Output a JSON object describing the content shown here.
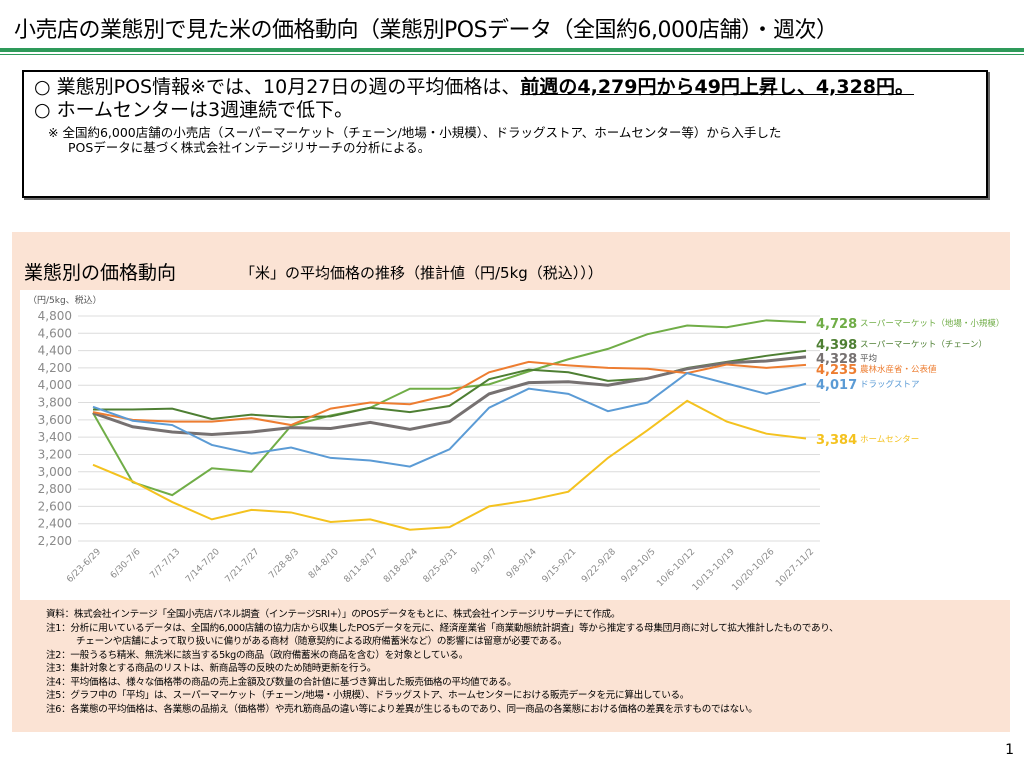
{
  "header": {
    "title": "小売店の業態別で見た米の価格動向（業態別POSデータ（全国約6,000店舗）・週次）"
  },
  "summary": {
    "bullet1_prefix": "○  業態別POS情報※では、10月27日の週の平均価格は、",
    "bullet1_emph": "前週の4,279円から49円上昇し、4,328円。",
    "bullet2": "○  ホームセンターは3週連続で低下。",
    "note1": "※  全国約6,000店舗の小売店（スーパーマーケット（チェーン/地場・小規模）、ドラッグストア、ホームセンター等）から入手した",
    "note2": "POSデータに基づく株式会社インテージリサーチの分析による。"
  },
  "panel": {
    "title": "業態別の価格動向",
    "subtitle": "「米」の平均価格の推移（推計値（円/5kg（税込）））"
  },
  "chart_data": {
    "type": "line",
    "title": "「米」の平均価格の推移（推計値（円/5kg（税込）））",
    "ylabel": "（円/5kg、税込）",
    "ylim": [
      2200,
      4800
    ],
    "yticks": [
      "2,200",
      "2,400",
      "2,600",
      "2,800",
      "3,000",
      "3,200",
      "3,400",
      "3,600",
      "3,800",
      "4,000",
      "4,200",
      "4,400",
      "4,600",
      "4,800"
    ],
    "grid": true,
    "legend": "right, end-of-line labels",
    "categories": [
      "6/23-6/29",
      "6/30-7/6",
      "7/7-7/13",
      "7/14-7/20",
      "7/21-7/27",
      "7/28-8/3",
      "8/4-8/10",
      "8/11-8/17",
      "8/18-8/24",
      "8/25-8/31",
      "9/1-9/7",
      "9/8-9/14",
      "9/15-9/21",
      "9/22-9/28",
      "9/29-10/5",
      "10/6-10/12",
      "10/13-10/19",
      "10/20-10/26",
      "10/27-11/2"
    ],
    "series": [
      {
        "name": "スーパーマーケット（地場・小規模）",
        "end_label": "4,728",
        "color": "#70ad47",
        "values": [
          3680,
          2880,
          2730,
          3040,
          3000,
          3530,
          3650,
          3740,
          3960,
          3960,
          4010,
          4160,
          4300,
          4420,
          4590,
          4690,
          4670,
          4750,
          4728
        ]
      },
      {
        "name": "スーパーマーケット（チェーン）",
        "end_label": "4,398",
        "color": "#4e7f33",
        "values": [
          3720,
          3720,
          3730,
          3610,
          3660,
          3630,
          3640,
          3740,
          3690,
          3760,
          4070,
          4180,
          4150,
          4050,
          4080,
          4200,
          4270,
          4340,
          4398
        ]
      },
      {
        "name": "平均",
        "end_label": "4,328",
        "color": "#767171",
        "values": [
          3680,
          3520,
          3460,
          3430,
          3460,
          3510,
          3500,
          3570,
          3490,
          3580,
          3900,
          4030,
          4040,
          4000,
          4080,
          4190,
          4260,
          4280,
          4328
        ]
      },
      {
        "name": "農林水産省・公表値",
        "end_label": "4,235",
        "color": "#ed7d31",
        "values": [
          3690,
          3600,
          3580,
          3580,
          3620,
          3540,
          3730,
          3800,
          3780,
          3890,
          4150,
          4270,
          4230,
          4200,
          4190,
          4140,
          4240,
          4200,
          4235
        ]
      },
      {
        "name": "ドラッグストア",
        "end_label": "4,017",
        "color": "#5b9bd5",
        "values": [
          3750,
          3590,
          3540,
          3310,
          3210,
          3280,
          3160,
          3130,
          3060,
          3260,
          3740,
          3960,
          3900,
          3700,
          3800,
          4140,
          4020,
          3900,
          4017
        ]
      },
      {
        "name": "ホームセンター",
        "end_label": "3,384",
        "color": "#f4c21f",
        "values": [
          3080,
          2890,
          2650,
          2450,
          2560,
          2530,
          2420,
          2450,
          2330,
          2360,
          2600,
          2670,
          2770,
          3160,
          3480,
          3820,
          3580,
          3440,
          3384
        ]
      }
    ]
  },
  "notes": [
    "資料：株式会社インテージ「全国小売店パネル調査（インテージSRI+）」のPOSデータをもとに、株式会社インテージリサーチにて作成。",
    "注1：分析に用いているデータは、全国約6,000店舗の協力店から収集したPOSデータを元に、経済産業省「商業動態統計調査」等から推定する母集団月商に対して拡大推計したものであり、",
    "チェーンや店舗によって取り扱いに偏りがある商材（随意契約による政府備蓄米など）の影響には留意が必要である。",
    "注2：一般うるち精米、無洗米に該当する5kgの商品（政府備蓄米の商品を含む）を対象としている。",
    "注3：集計対象とする商品のリストは、新商品等の反映のため随時更新を行う。",
    "注4：平均価格は、様々な価格帯の商品の売上金額及び数量の合計値に基づき算出した販売価格の平均値である。",
    "注5：グラフ中の「平均」は、スーパーマーケット（チェーン/地場・小規模）、ドラッグストア、ホームセンターにおける販売データを元に算出している。",
    "注6：各業態の平均価格は、各業態の品揃え（価格帯）や売れ筋商品の違い等により差異が生じるものであり、同一商品の各業態における価格の差異を示すものではない。"
  ],
  "page_number": "1"
}
